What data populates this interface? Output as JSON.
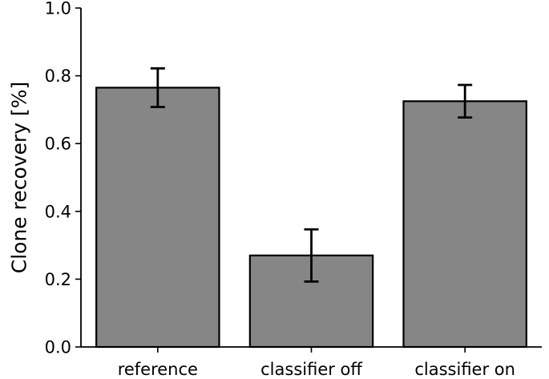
{
  "chart_data": {
    "type": "bar",
    "title": "",
    "xlabel": "",
    "ylabel": "Clone recovery [%]",
    "categories": [
      "reference",
      "classifier off",
      "classifier on"
    ],
    "values": [
      0.765,
      0.27,
      0.725
    ],
    "errors": [
      0.057,
      0.077,
      0.048
    ],
    "ylim": [
      0.0,
      1.0
    ],
    "yticks": [
      "0.0",
      "0.2",
      "0.4",
      "0.6",
      "0.8",
      "1.0"
    ],
    "grid": false,
    "legend": "none",
    "colors": {
      "bar_fill": "#868686",
      "bar_edge": "#000000",
      "error_bar": "#000000",
      "axis": "#000000"
    }
  }
}
